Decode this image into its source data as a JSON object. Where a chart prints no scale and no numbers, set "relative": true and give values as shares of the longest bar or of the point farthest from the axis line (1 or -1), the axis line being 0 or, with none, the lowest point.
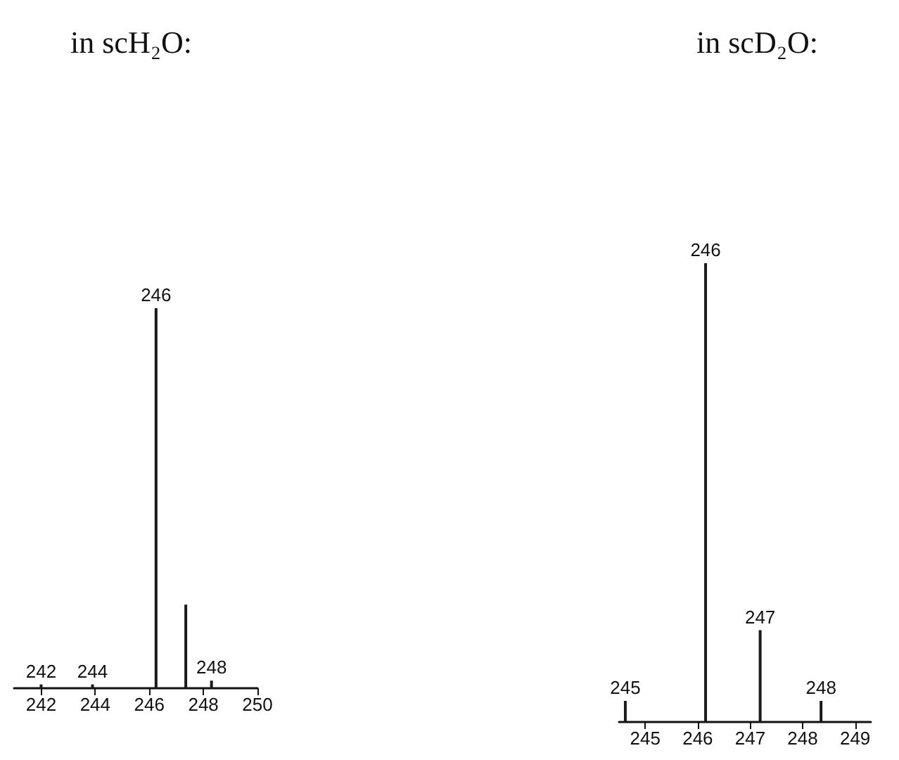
{
  "chart_data": [
    {
      "type": "bar",
      "title": "in scH₂O:",
      "x": [
        242.0,
        243.9,
        246.25,
        247.35,
        248.3
      ],
      "values": [
        0.01,
        0.01,
        1,
        0.22,
        0.02
      ],
      "annotations": [
        {
          "text": "242",
          "x": 242.0,
          "y": 0.01
        },
        {
          "text": "244",
          "x": 243.9,
          "y": 0.01
        },
        {
          "text": "246",
          "x": 246.25,
          "y": 1
        },
        {
          "text": "248",
          "x": 248.3,
          "y": 0.02
        }
      ],
      "color": "#1a1a1a",
      "relative": true,
      "xlim": [
        241,
        250
      ],
      "xticks": [
        242,
        244,
        246,
        248,
        250
      ]
    },
    {
      "type": "bar",
      "title": "in scD₂O:",
      "x": [
        244.62,
        246.15,
        247.19,
        248.35
      ],
      "values": [
        0.046,
        1,
        0.2,
        0.046
      ],
      "annotations": [
        {
          "text": "245",
          "x": 244.62,
          "y": 0.046
        },
        {
          "text": "246",
          "x": 246.15,
          "y": 1
        },
        {
          "text": "247",
          "x": 247.19,
          "y": 0.2
        },
        {
          "text": "248",
          "x": 248.35,
          "y": 0.046
        }
      ],
      "color": "#1a1a1a",
      "relative": true,
      "xlim": [
        244.5,
        249.3
      ],
      "xticks": [
        245,
        246,
        247,
        248,
        249
      ]
    }
  ]
}
